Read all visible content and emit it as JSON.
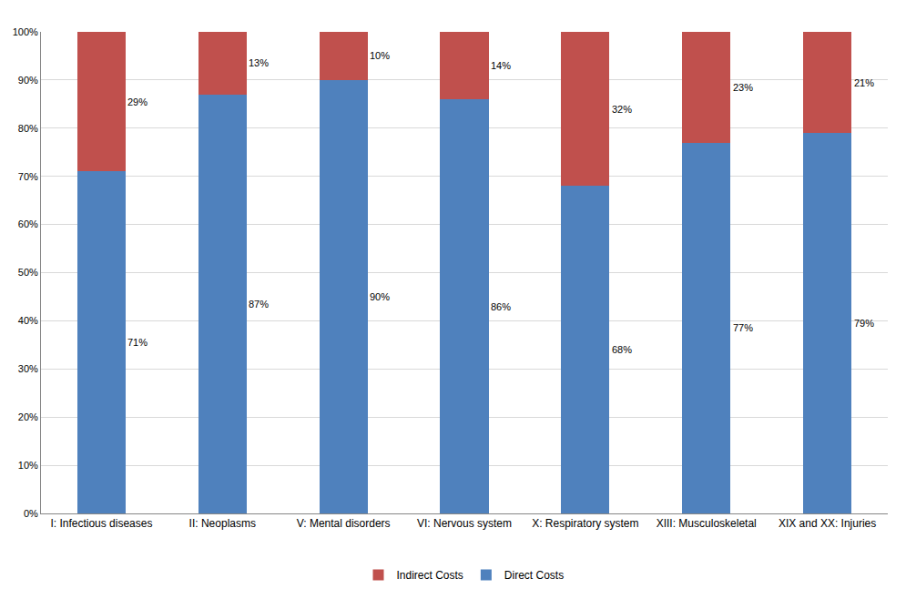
{
  "chart_data": {
    "type": "bar",
    "stacked": true,
    "data_labels": true,
    "grid": true,
    "legend": "bottom",
    "categories": [
      "I: Infectious diseases",
      "II: Neoplasms",
      "V: Mental disorders",
      "VI: Nervous system",
      "X: Respiratory system",
      "XIII: Musculoskeletal",
      "XIX and XX: Injuries"
    ],
    "series": [
      {
        "name": "Direct Costs",
        "color": "#4F81BD",
        "values": [
          71,
          87,
          90,
          86,
          68,
          77,
          79
        ],
        "value_labels": [
          "71%",
          "87%",
          "90%",
          "86%",
          "68%",
          "77%",
          "79%"
        ]
      },
      {
        "name": "Indirect Costs",
        "color": "#C0504D",
        "values": [
          29,
          13,
          10,
          14,
          32,
          23,
          21
        ],
        "value_labels": [
          "29%",
          "13%",
          "10%",
          "14%",
          "32%",
          "23%",
          "21%"
        ]
      }
    ],
    "ylim": [
      0,
      100
    ],
    "yticks": [
      {
        "value": 0,
        "label": "0%"
      },
      {
        "value": 10,
        "label": "10%"
      },
      {
        "value": 20,
        "label": "20%"
      },
      {
        "value": 30,
        "label": "30%"
      },
      {
        "value": 40,
        "label": "40%"
      },
      {
        "value": 50,
        "label": "50%"
      },
      {
        "value": 60,
        "label": "60%"
      },
      {
        "value": 70,
        "label": "70%"
      },
      {
        "value": 80,
        "label": "80%"
      },
      {
        "value": 90,
        "label": "90%"
      },
      {
        "value": 100,
        "label": "100%"
      }
    ]
  }
}
